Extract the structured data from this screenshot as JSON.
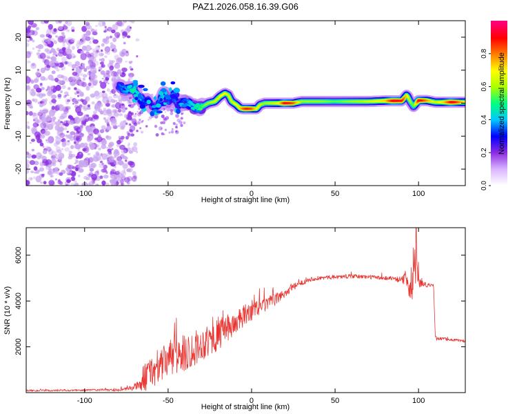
{
  "title": "PAZ1.2026.058.16.39.G06",
  "colors": {
    "trace": "#e8332f",
    "cloud": "#8a2be2",
    "cloud_light": "#c9a6f0",
    "frame": "#000000"
  },
  "colorbar": {
    "label": "Normalized spectral amplitude",
    "ticks": [
      0.0,
      0.2,
      0.4,
      0.6,
      0.8
    ],
    "tick_labels": [
      "0.0",
      "0.2",
      "0.4",
      "0.6",
      "0.8"
    ],
    "range": [
      0,
      1
    ],
    "colormap": [
      "#ffffff",
      "#d9b3ff",
      "#8a2be2",
      "#0000ff",
      "#00c8ff",
      "#00ff80",
      "#aaff00",
      "#ffff00",
      "#ff8000",
      "#ff0000",
      "#ff0080"
    ]
  },
  "chart_data": [
    {
      "type": "heatmap",
      "title": "PAZ1.2026.058.16.39.G06",
      "xlabel": "Height of straight line (km)",
      "ylabel": "Frequency (Hz)",
      "xlim": [
        -135,
        128
      ],
      "ylim": [
        -25,
        25
      ],
      "xticks": [
        -100,
        -50,
        0,
        50,
        100
      ],
      "xtick_labels": [
        "-100",
        "-50",
        "0",
        "50",
        "100"
      ],
      "yticks": [
        -20,
        -10,
        0,
        10,
        20
      ],
      "ytick_labels": [
        "-20",
        "-10",
        "0",
        "10",
        "20"
      ],
      "noise_region_x": [
        -135,
        -68
      ],
      "ridge": {
        "x": [
          -80,
          -75,
          -72,
          -68,
          -65,
          -62,
          -58,
          -55,
          -52,
          -50,
          -47,
          -44,
          -40,
          -36,
          -33,
          -30,
          -26,
          -22,
          -19,
          -16,
          -14,
          -12,
          -9,
          -7,
          -5,
          -3,
          0,
          3,
          5,
          8,
          12,
          16,
          20,
          25,
          30,
          40,
          50,
          60,
          70,
          80,
          85,
          90,
          93,
          95,
          97,
          100,
          105,
          110,
          115,
          120,
          128
        ],
        "freq": [
          5,
          4,
          4.5,
          2.5,
          0.5,
          0.5,
          -1.5,
          0.5,
          3.5,
          0.5,
          2.5,
          -0.5,
          0.5,
          -0.8,
          -1.5,
          -1.2,
          0,
          0.5,
          2,
          3,
          2.5,
          0.5,
          -0.5,
          -1.5,
          -1.7,
          -1.7,
          -1.7,
          -1.7,
          -0.5,
          0,
          0,
          0,
          0,
          0,
          0.5,
          0.5,
          0.5,
          0.5,
          0.5,
          0.7,
          0.7,
          0.7,
          2.5,
          0.5,
          -1,
          0.8,
          0.8,
          0.3,
          0.3,
          0.3,
          0.3
        ],
        "amp": [
          0.35,
          0.4,
          0.5,
          0.45,
          0.35,
          0.3,
          0.3,
          0.4,
          0.45,
          0.35,
          0.4,
          0.3,
          0.35,
          0.45,
          0.5,
          0.55,
          0.6,
          0.65,
          0.7,
          0.7,
          0.65,
          0.65,
          0.7,
          0.75,
          0.85,
          0.9,
          0.85,
          0.7,
          0.65,
          0.6,
          0.65,
          0.7,
          0.95,
          0.85,
          0.6,
          0.6,
          0.55,
          0.6,
          0.65,
          0.75,
          0.95,
          0.9,
          0.7,
          0.6,
          0.55,
          0.95,
          0.8,
          0.65,
          0.75,
          0.95,
          0.7
        ]
      }
    },
    {
      "type": "line",
      "xlabel": "Height of straight line (km)",
      "ylabel": "SNR (10 * v/v)",
      "xlim": [
        -135,
        128
      ],
      "ylim": [
        0,
        7200
      ],
      "xticks": [
        -100,
        -50,
        0,
        50,
        100
      ],
      "xtick_labels": [
        "-100",
        "-50",
        "0",
        "50",
        "100"
      ],
      "yticks": [
        2000,
        4000,
        6000
      ],
      "ytick_labels": [
        "2000",
        "4000",
        "6000"
      ],
      "series": [
        {
          "name": "SNR",
          "x": [
            -135,
            -110,
            -90,
            -80,
            -75,
            -70,
            -66,
            -65,
            -60,
            -55,
            -50,
            -45,
            -40,
            -35,
            -30,
            -25,
            -20,
            -15,
            -10,
            -5,
            0,
            5,
            10,
            15,
            20,
            25,
            30,
            35,
            40,
            50,
            60,
            70,
            80,
            85,
            90,
            93,
            96,
            97,
            98,
            99,
            100,
            105,
            108,
            109,
            110,
            111,
            115,
            120,
            128
          ],
          "baseline": [
            90,
            90,
            120,
            110,
            150,
            250,
            350,
            600,
            900,
            1100,
            1500,
            1600,
            1700,
            1900,
            2100,
            2300,
            2500,
            2800,
            3000,
            3300,
            3600,
            3700,
            3900,
            4100,
            4350,
            4600,
            4800,
            4950,
            5000,
            5050,
            5080,
            5050,
            5000,
            5000,
            4900,
            5050,
            4400,
            5000,
            5800,
            5400,
            4800,
            4700,
            4650,
            4700,
            2500,
            2350,
            2350,
            2300,
            2250
          ],
          "noise": [
            40,
            40,
            50,
            60,
            70,
            150,
            250,
            600,
            700,
            700,
            800,
            900,
            800,
            800,
            700,
            700,
            700,
            600,
            500,
            500,
            450,
            350,
            300,
            250,
            200,
            150,
            120,
            100,
            90,
            90,
            90,
            90,
            90,
            100,
            150,
            400,
            800,
            800,
            1200,
            600,
            200,
            100,
            80,
            80,
            80,
            70,
            60,
            60,
            60
          ]
        }
      ]
    }
  ]
}
